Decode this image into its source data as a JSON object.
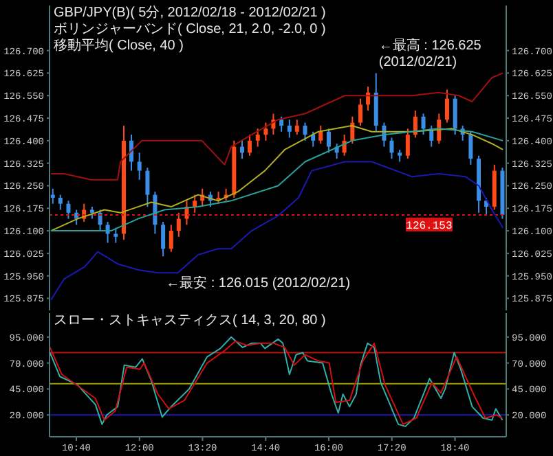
{
  "chart_data": [
    {
      "type": "candlestick",
      "title": "GBP/JPY(B)( 5分, 2012/02/18 - 2012/02/21 )",
      "subtitle": "ボリンジャーバンド( Close, 21, 2.0, -2.0, 0 )",
      "annotations": [
        "移動平均( Close, 40 )",
        {
          "text": "←最高 : 126.625 (2012/02/21)",
          "x": 17.0,
          "y": 126.625
        },
        {
          "text": "←最安 : 126.015 (2012/02/21)",
          "x": 12.5,
          "y": 126.015
        }
      ],
      "x": [
        10.17,
        10.33,
        10.5,
        10.67,
        10.83,
        11.0,
        11.17,
        11.33,
        11.5,
        11.67,
        11.83,
        12.0,
        12.17,
        12.33,
        12.5,
        12.67,
        12.83,
        13.0,
        13.17,
        13.33,
        13.5,
        13.67,
        13.83,
        14.0,
        14.17,
        14.33,
        14.5,
        14.67,
        14.83,
        15.0,
        15.17,
        15.33,
        15.5,
        15.67,
        15.83,
        16.0,
        16.17,
        16.33,
        16.5,
        16.67,
        16.83,
        17.0,
        17.17,
        17.33,
        17.5,
        17.67,
        17.83,
        18.0,
        18.17,
        18.33,
        18.5,
        18.67,
        18.83,
        19.0,
        19.17,
        19.33,
        19.5,
        19.67
      ],
      "ohlc": [
        [
          126.22,
          126.24,
          126.19,
          126.21
        ],
        [
          126.21,
          126.22,
          126.17,
          126.19
        ],
        [
          126.19,
          126.2,
          126.14,
          126.16
        ],
        [
          126.16,
          126.17,
          126.12,
          126.14
        ],
        [
          126.14,
          126.19,
          126.13,
          126.17
        ],
        [
          126.17,
          126.18,
          126.14,
          126.16
        ],
        [
          126.16,
          126.17,
          126.1,
          126.12
        ],
        [
          126.12,
          126.13,
          126.06,
          126.09
        ],
        [
          126.09,
          126.11,
          126.06,
          126.08
        ],
        [
          126.09,
          126.45,
          126.07,
          126.4
        ],
        [
          126.4,
          126.42,
          126.3,
          126.33
        ],
        [
          126.33,
          126.36,
          126.27,
          126.3
        ],
        [
          126.3,
          126.31,
          126.18,
          126.22
        ],
        [
          126.22,
          126.23,
          126.09,
          126.12
        ],
        [
          126.12,
          126.13,
          126.015,
          126.04
        ],
        [
          126.04,
          126.12,
          126.03,
          126.1
        ],
        [
          126.1,
          126.16,
          126.08,
          126.14
        ],
        [
          126.14,
          126.2,
          126.12,
          126.18
        ],
        [
          126.18,
          126.22,
          126.16,
          126.2
        ],
        [
          126.2,
          126.24,
          126.18,
          126.22
        ],
        [
          126.22,
          126.23,
          126.18,
          126.2
        ],
        [
          126.2,
          126.23,
          126.19,
          126.21
        ],
        [
          126.21,
          126.24,
          126.2,
          126.22
        ],
        [
          126.22,
          126.4,
          126.21,
          126.38
        ],
        [
          126.38,
          126.4,
          126.34,
          126.36
        ],
        [
          126.36,
          126.42,
          126.35,
          126.4
        ],
        [
          126.4,
          126.44,
          126.38,
          126.42
        ],
        [
          126.42,
          126.46,
          126.4,
          126.44
        ],
        [
          126.44,
          126.49,
          126.42,
          126.47
        ],
        [
          126.47,
          126.48,
          126.43,
          126.45
        ],
        [
          126.45,
          126.47,
          126.41,
          126.43
        ],
        [
          126.43,
          126.47,
          126.42,
          126.45
        ],
        [
          126.45,
          126.46,
          126.4,
          126.42
        ],
        [
          126.42,
          126.43,
          126.38,
          126.4
        ],
        [
          126.4,
          126.45,
          126.39,
          126.43
        ],
        [
          126.43,
          126.44,
          126.36,
          126.38
        ],
        [
          126.38,
          126.39,
          126.34,
          126.36
        ],
        [
          126.36,
          126.42,
          126.35,
          126.4
        ],
        [
          126.4,
          126.48,
          126.39,
          126.46
        ],
        [
          126.46,
          126.54,
          126.45,
          126.52
        ],
        [
          126.52,
          126.58,
          126.5,
          126.56
        ],
        [
          126.56,
          126.625,
          126.43,
          126.45
        ],
        [
          126.45,
          126.46,
          126.38,
          126.4
        ],
        [
          126.4,
          126.41,
          126.34,
          126.36
        ],
        [
          126.36,
          126.37,
          126.33,
          126.35
        ],
        [
          126.35,
          126.44,
          126.34,
          126.42
        ],
        [
          126.42,
          126.5,
          126.41,
          126.48
        ],
        [
          126.48,
          126.49,
          126.42,
          126.44
        ],
        [
          126.44,
          126.45,
          126.38,
          126.4
        ],
        [
          126.4,
          126.49,
          126.39,
          126.47
        ],
        [
          126.47,
          126.57,
          126.46,
          126.54
        ],
        [
          126.54,
          126.55,
          126.42,
          126.44
        ],
        [
          126.44,
          126.45,
          126.4,
          126.42
        ],
        [
          126.42,
          126.43,
          126.32,
          126.34
        ],
        [
          126.34,
          126.35,
          126.16,
          126.2
        ],
        [
          126.2,
          126.21,
          126.15,
          126.18
        ],
        [
          126.18,
          126.32,
          126.17,
          126.3
        ],
        [
          126.3,
          126.31,
          126.14,
          126.153
        ]
      ],
      "colors": [
        "#3a8ee6",
        "#3a8ee6",
        "#3a8ee6",
        "#3a8ee6",
        "#ff4a1a",
        "#3a8ee6",
        "#3a8ee6",
        "#3a8ee6",
        "#3a8ee6",
        "#ff4a1a",
        "#3a8ee6",
        "#3a8ee6",
        "#3a8ee6",
        "#3a8ee6",
        "#3a8ee6",
        "#ff4a1a",
        "#ff4a1a",
        "#ff4a1a",
        "#ff4a1a",
        "#ff4a1a",
        "#3a8ee6",
        "#ff4a1a",
        "#ff4a1a",
        "#ff4a1a",
        "#3a8ee6",
        "#ff4a1a",
        "#ff4a1a",
        "#ff4a1a",
        "#ff4a1a",
        "#3a8ee6",
        "#3a8ee6",
        "#ff4a1a",
        "#3a8ee6",
        "#3a8ee6",
        "#ff4a1a",
        "#3a8ee6",
        "#3a8ee6",
        "#ff4a1a",
        "#ff4a1a",
        "#ff4a1a",
        "#ff4a1a",
        "#3a8ee6",
        "#3a8ee6",
        "#3a8ee6",
        "#3a8ee6",
        "#ff4a1a",
        "#ff4a1a",
        "#3a8ee6",
        "#3a8ee6",
        "#ff4a1a",
        "#ff4a1a",
        "#3a8ee6",
        "#3a8ee6",
        "#3a8ee6",
        "#3a8ee6",
        "#3a8ee6",
        "#ff4a1a",
        "#3a8ee6"
      ],
      "series": [
        {
          "type": "line",
          "color": "#a01010",
          "x": [
            10.13,
            10.41,
            10.98,
            11.54,
            11.6,
            12.05,
            12.67,
            13.32,
            13.8,
            13.94,
            14.37,
            14.93,
            15.5,
            16.34,
            16.91,
            17.76,
            18.32,
            18.75,
            19.03,
            19.45,
            19.68
          ],
          "values": [
            126.29,
            126.29,
            126.27,
            126.27,
            126.33,
            126.4,
            126.4,
            126.4,
            126.32,
            126.38,
            126.42,
            126.47,
            126.49,
            126.55,
            126.55,
            126.55,
            126.56,
            126.55,
            126.53,
            126.61,
            126.625
          ]
        },
        {
          "type": "line",
          "color": "#1a1ab0",
          "x": [
            10.13,
            10.41,
            10.84,
            11.12,
            11.54,
            11.97,
            12.39,
            12.81,
            13.24,
            13.66,
            13.94,
            14.37,
            14.93,
            15.36,
            15.64,
            16.34,
            16.91,
            17.76,
            18.32,
            18.89,
            19.17,
            19.45,
            19.68
          ],
          "values": [
            125.87,
            125.94,
            125.98,
            126.03,
            125.99,
            125.97,
            125.96,
            125.96,
            126.02,
            126.04,
            126.04,
            126.1,
            126.15,
            126.21,
            126.3,
            126.33,
            126.33,
            126.28,
            126.29,
            126.28,
            126.25,
            126.17,
            126.11
          ]
        },
        {
          "type": "line",
          "color": "#b0b020",
          "x": [
            10.13,
            10.69,
            11.26,
            11.6,
            11.97,
            12.25,
            12.67,
            13.24,
            13.66,
            14.08,
            14.65,
            15.07,
            15.78,
            16.49,
            16.91,
            17.76,
            18.6,
            19.03,
            19.45,
            19.68
          ],
          "values": [
            126.1,
            126.14,
            126.17,
            126.16,
            126.18,
            126.195,
            126.18,
            126.22,
            126.2,
            126.23,
            126.3,
            126.37,
            126.43,
            126.45,
            126.43,
            126.43,
            126.44,
            126.42,
            126.39,
            126.37
          ]
        },
        {
          "type": "line",
          "color": "#2aa198",
          "x": [
            10.13,
            11.4,
            11.97,
            12.53,
            13.24,
            13.94,
            14.93,
            15.5,
            16.49,
            17.19,
            18.32,
            19.03,
            19.68
          ],
          "values": [
            126.1,
            126.1,
            126.14,
            126.17,
            126.18,
            126.2,
            126.25,
            126.33,
            126.4,
            126.42,
            126.44,
            126.43,
            126.4
          ]
        }
      ],
      "ref_lines": [
        {
          "axis": "y",
          "value": 126.153,
          "label": "126.153",
          "color": "#e01010",
          "line_style": "dotted"
        }
      ],
      "xlim": [
        10.1,
        19.75
      ],
      "ylim": [
        125.835,
        126.85
      ],
      "yticks": [
        {
          "value": 125.875,
          "label": "125.875"
        },
        {
          "value": 125.95,
          "label": "125.950"
        },
        {
          "value": 126.025,
          "label": "126.025"
        },
        {
          "value": 126.1,
          "label": "126.100"
        },
        {
          "value": 126.175,
          "label": "126.175"
        },
        {
          "value": 126.25,
          "label": "126.250"
        },
        {
          "value": 126.325,
          "label": "126.325"
        },
        {
          "value": 126.4,
          "label": "126.400"
        },
        {
          "value": 126.475,
          "label": "126.475"
        },
        {
          "value": 126.55,
          "label": "126.550"
        },
        {
          "value": 126.625,
          "label": "126.625"
        },
        {
          "value": 126.7,
          "label": "126.700"
        }
      ],
      "y2lim": [
        125.835,
        126.85
      ],
      "y2ticks": [
        {
          "value": 125.875,
          "label": "125.875"
        },
        {
          "value": 125.95,
          "label": "125.950"
        },
        {
          "value": 126.025,
          "label": "126.025"
        },
        {
          "value": 126.1,
          "label": "126.100"
        },
        {
          "value": 126.175,
          "label": "126.175"
        },
        {
          "value": 126.25,
          "label": "126.250"
        },
        {
          "value": 126.325,
          "label": "126.325"
        },
        {
          "value": 126.4,
          "label": "126.400"
        },
        {
          "value": 126.475,
          "label": "126.475"
        },
        {
          "value": 126.55,
          "label": "126.550"
        },
        {
          "value": 126.625,
          "label": "126.625"
        },
        {
          "value": 126.7,
          "label": "126.700"
        }
      ],
      "tick_labels": "y"
    },
    {
      "type": "line",
      "title": "スロー・ストキャスティクス( 14, 3, 20, 80 )",
      "series": [
        {
          "color": "#30b0a8",
          "x": [
            10.11,
            10.32,
            10.69,
            11.07,
            11.21,
            11.31,
            11.54,
            11.68,
            11.92,
            12.06,
            12.25,
            12.48,
            12.67,
            13.05,
            13.43,
            13.71,
            13.94,
            14.18,
            14.37,
            14.56,
            14.65,
            14.93,
            15.03,
            15.17,
            15.31,
            15.45,
            15.55,
            15.87,
            16.06,
            16.2,
            16.3,
            16.44,
            16.58,
            16.67,
            16.82,
            16.96,
            17.1,
            17.24,
            17.47,
            17.62,
            17.8,
            18.13,
            18.37,
            18.46,
            18.65,
            18.79,
            19.03,
            19.26,
            19.45,
            19.53,
            19.67
          ],
          "values": [
            80,
            57,
            49,
            30,
            11,
            20,
            28,
            68,
            66,
            74,
            53,
            18,
            28,
            45,
            76,
            84,
            95,
            85,
            89,
            89,
            84,
            93,
            89,
            59,
            78,
            80,
            72,
            70,
            40,
            22,
            40,
            28,
            40,
            68,
            89,
            85,
            51,
            36,
            11,
            9,
            17,
            55,
            36,
            45,
            80,
            64,
            28,
            17,
            15,
            26,
            15
          ]
        },
        {
          "color": "#d01010",
          "x": [
            10.11,
            10.36,
            11.07,
            11.26,
            11.49,
            11.73,
            12.01,
            12.1,
            12.39,
            12.62,
            12.95,
            13.43,
            13.8,
            14.03,
            14.27,
            14.56,
            14.84,
            15.07,
            15.27,
            15.5,
            15.78,
            16.01,
            16.15,
            16.44,
            16.72,
            16.96,
            17.19,
            17.57,
            17.85,
            18.18,
            18.37,
            18.7,
            19.08,
            19.31,
            19.54,
            19.67
          ],
          "values": [
            85,
            59,
            36,
            15,
            24,
            66,
            64,
            70,
            40,
            26,
            34,
            70,
            82,
            91,
            87,
            89,
            89,
            85,
            68,
            78,
            72,
            70,
            32,
            34,
            72,
            89,
            49,
            11,
            17,
            51,
            41,
            76,
            38,
            17,
            20,
            17
          ]
        }
      ],
      "ref_lines": [
        {
          "axis": "y",
          "value": 80,
          "color": "#c01010"
        },
        {
          "axis": "y",
          "value": 50,
          "color": "#a0a000"
        },
        {
          "axis": "y",
          "value": 20,
          "color": "#1a1ab0"
        }
      ],
      "xlim": [
        10.1,
        19.75
      ],
      "xticks": [
        {
          "value": 10.667,
          "label": "10:40"
        },
        {
          "value": 12,
          "label": "12:00"
        },
        {
          "value": 13.333,
          "label": "13:20"
        },
        {
          "value": 14.667,
          "label": "14:40"
        },
        {
          "value": 16,
          "label": "16:00"
        },
        {
          "value": 17.333,
          "label": "17:20"
        },
        {
          "value": 18.667,
          "label": "18:40"
        }
      ],
      "ylim": [
        -1,
        118
      ],
      "yticks": [
        {
          "value": 20,
          "label": "20.000"
        },
        {
          "value": 45,
          "label": "45.000"
        },
        {
          "value": 70,
          "label": "70.000"
        },
        {
          "value": 95,
          "label": "95.000"
        }
      ],
      "y2lim": [
        -1,
        118
      ],
      "y2ticks": [
        {
          "value": 20,
          "label": "20.000"
        },
        {
          "value": 45,
          "label": "45.000"
        },
        {
          "value": 70,
          "label": "70.000"
        },
        {
          "value": 95,
          "label": "95.000"
        }
      ]
    }
  ]
}
